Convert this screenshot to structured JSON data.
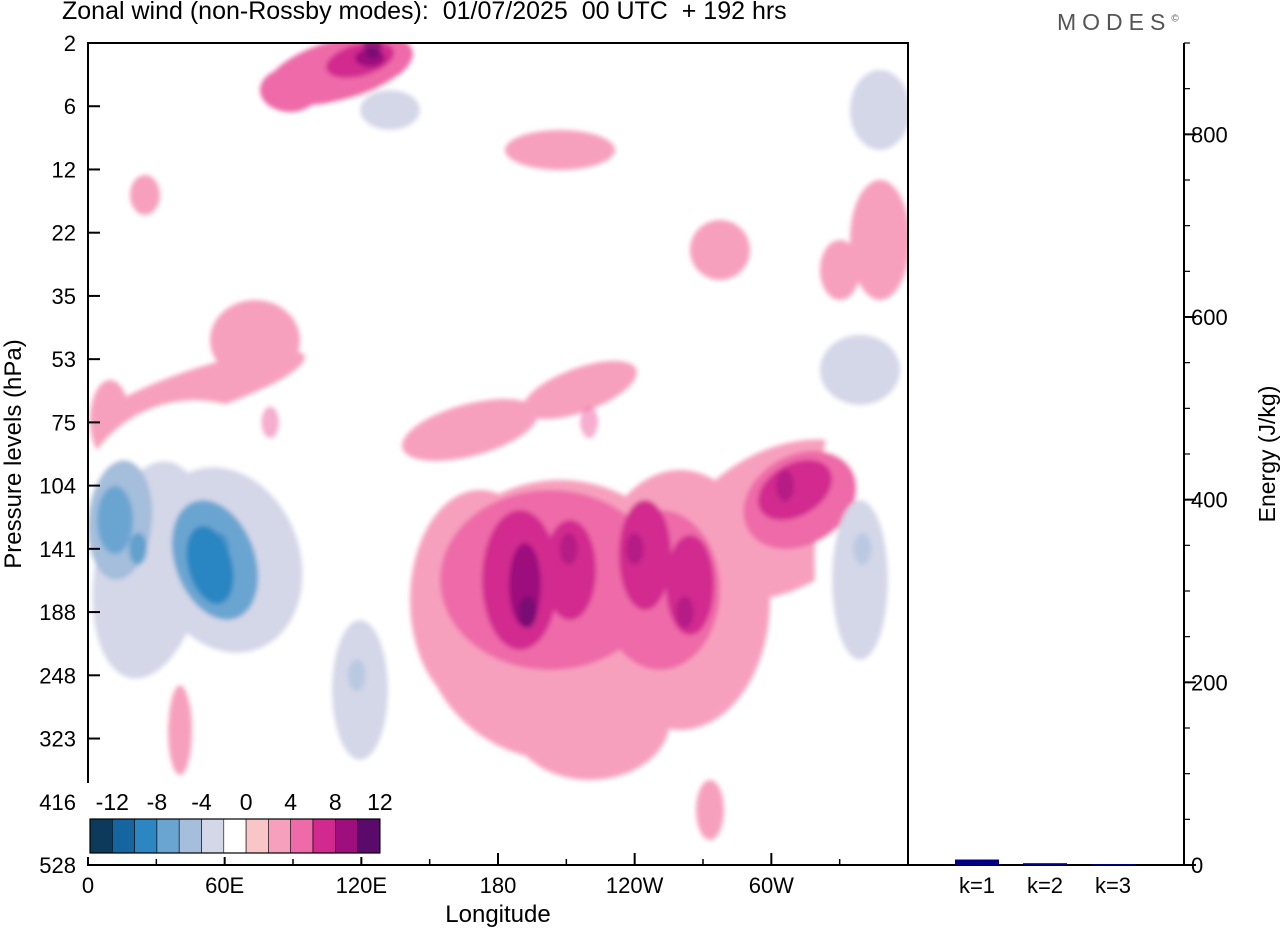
{
  "title": "Zonal wind (non-Rossby modes):  01/07/2025  00 UTC  + 192 hrs",
  "logo_text": "MODES",
  "logo_mark": "©",
  "chart_data": [
    {
      "type": "heatmap",
      "xlabel": "Longitude",
      "ylabel": "Pressure levels (hPa)",
      "x_tick_labels": [
        "0",
        "60E",
        "120E",
        "180",
        "120W",
        "60W"
      ],
      "x_tick_values_deg": [
        0,
        60,
        120,
        180,
        240,
        300
      ],
      "xlim": [
        0,
        360
      ],
      "y_tick_labels": [
        "2",
        "6",
        "12",
        "22",
        "35",
        "53",
        "75",
        "104",
        "141",
        "188",
        "248",
        "323",
        "416",
        "528"
      ],
      "colorbar": {
        "labels": [
          "-12",
          "-8",
          "-4",
          "0",
          "4",
          "8",
          "12"
        ],
        "levels": [
          -14,
          -12,
          -10,
          -8,
          -6,
          -4,
          -2,
          2,
          4,
          6,
          8,
          10,
          12,
          14
        ],
        "colors": [
          "#0d3a5a",
          "#1565a1",
          "#2b86c2",
          "#6aa5d1",
          "#a4bedc",
          "#d4d7e8",
          "#ffffff",
          "#f8c6c6",
          "#f7a0bd",
          "#ee6aa8",
          "#d2298f",
          "#9e0f7d",
          "#5a0a6b"
        ]
      },
      "features": [
        {
          "lon": 22,
          "level": "141",
          "value": -12
        },
        {
          "lon": 58,
          "level": "141",
          "value": -11
        },
        {
          "lon": 118,
          "level": "248",
          "value": -7
        },
        {
          "lon": 193,
          "level": "188",
          "value": 10
        },
        {
          "lon": 211,
          "level": "141",
          "value": 8
        },
        {
          "lon": 240,
          "level": "141",
          "value": 8
        },
        {
          "lon": 262,
          "level": "188",
          "value": 8
        },
        {
          "lon": 306,
          "level": "104",
          "value": 8
        },
        {
          "lon": 340,
          "level": "141",
          "value": -7
        },
        {
          "lon": 125,
          "level": "2",
          "value": 10
        },
        {
          "lon": 80,
          "level": "75",
          "value": 4
        },
        {
          "lon": 220,
          "level": "75",
          "value": 4
        }
      ]
    },
    {
      "type": "bar",
      "ylabel": "Energy (J/kg)",
      "categories": [
        "k=1",
        "k=2",
        "k=3"
      ],
      "values": [
        6,
        2,
        1
      ],
      "ylim": [
        0,
        900
      ],
      "y_ticks": [
        0,
        200,
        400,
        600,
        800
      ],
      "bar_color": "#000080"
    }
  ]
}
